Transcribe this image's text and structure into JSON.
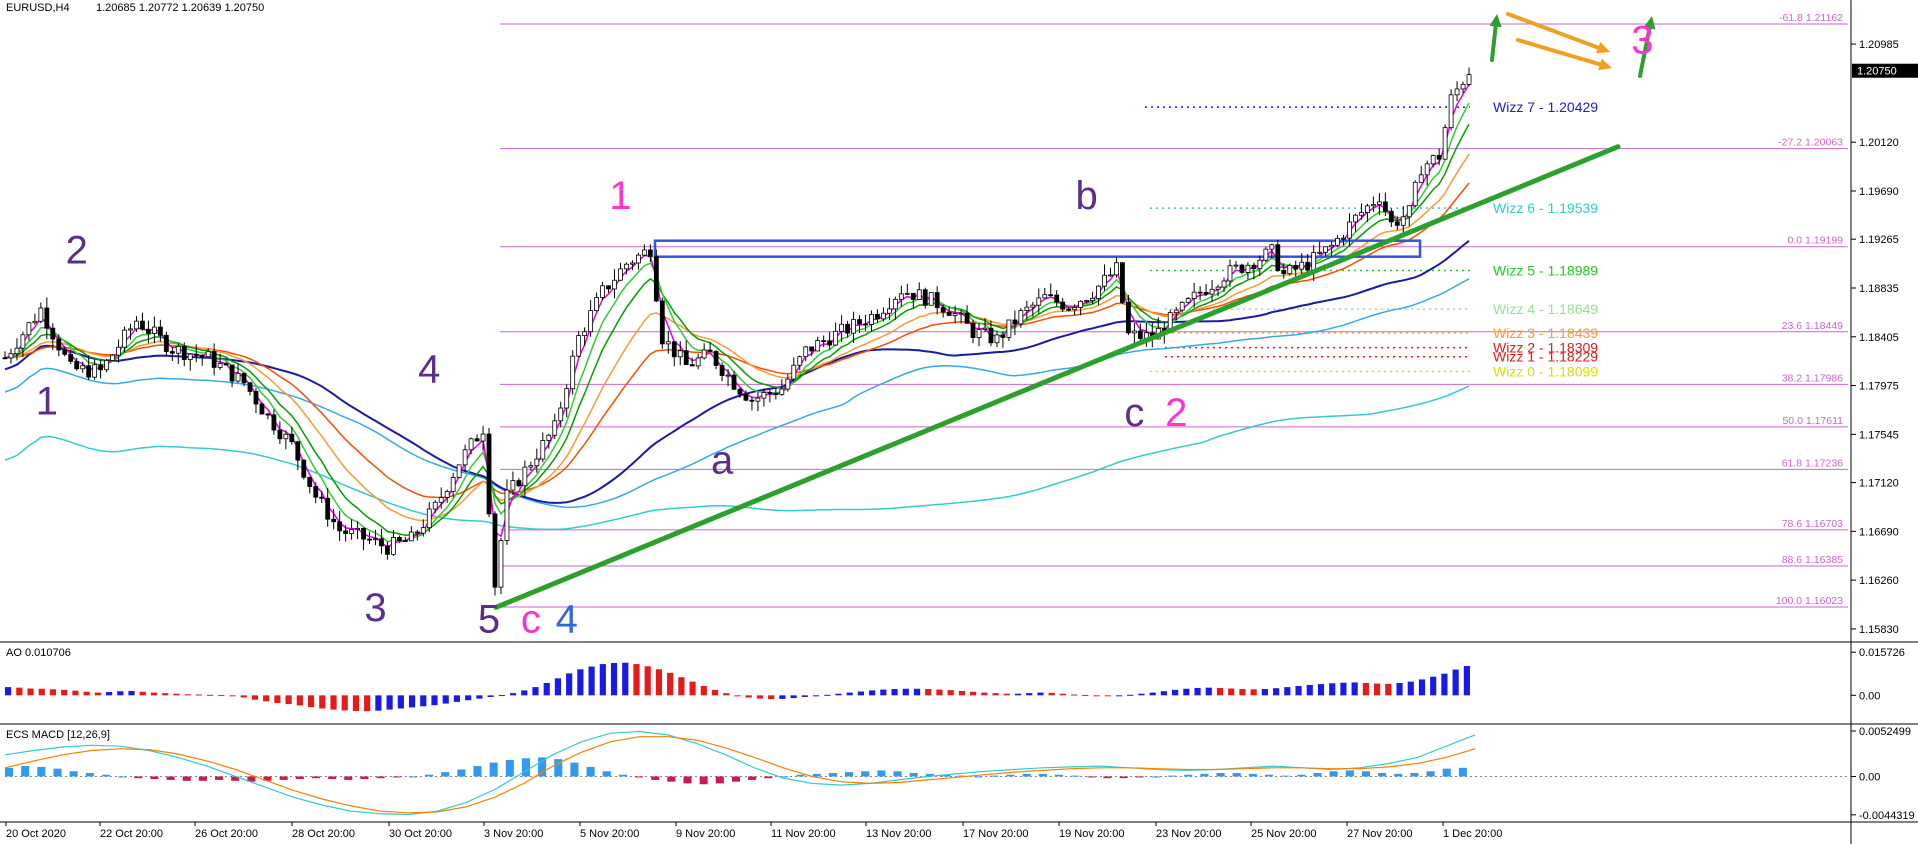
{
  "header": {
    "symbol": "EURUSD,H4",
    "ohlc": "1.20685 1.20772 1.20639 1.20750"
  },
  "colors": {
    "background": "#ffffff",
    "bull_candle": "#ffffff",
    "bear_candle": "#000000",
    "fib": "#cc66cc",
    "trend_line": "#2ca02c",
    "support_box": "#3355dd",
    "wave_purple": "#5b2d8c",
    "wave_pink": "#ff33cc",
    "wave_blue": "#3366dd",
    "arrow_green": "#2e9e2e",
    "arrow_orange": "#f0a020",
    "ao_up": "#1a1ae6",
    "ao_down": "#e61a1a",
    "macd_hist_up": "#3399ee",
    "macd_hist_down": "#cc1a4d",
    "macd_line": "#33cccc",
    "signal_line": "#ff8000",
    "ema_pink": "#e600e6",
    "ema_green": "#33cc33",
    "ema_green2": "#00a000",
    "ema_orange": "#ff9933",
    "ema_red": "#ff4d00",
    "ema_blue": "#1a1aa6",
    "ema_lightblue": "#33aaee",
    "ema_cyan": "#33cccc"
  },
  "chart_data": {
    "type": "candlestick",
    "symbol": "EURUSD",
    "timeframe": "H4",
    "price_axis": {
      "ylim": [
        1.1575,
        1.2125
      ],
      "ticks": [
        "1.20985",
        "1.20120",
        "1.19690",
        "1.19265",
        "1.18835",
        "1.18405",
        "1.17975",
        "1.17545",
        "1.17120",
        "1.16690",
        "1.16260",
        "1.15830"
      ],
      "current_price_label": "1.20750"
    },
    "time_axis": {
      "labels": [
        "20 Oct 2020",
        "22 Oct 20:00",
        "26 Oct 20:00",
        "28 Oct 20:00",
        "30 Oct 20:00",
        "3 Nov 20:00",
        "5 Nov 20:00",
        "9 Nov 20:00",
        "11 Nov 20:00",
        "13 Nov 20:00",
        "17 Nov 20:00",
        "19 Nov 20:00",
        "23 Nov 20:00",
        "25 Nov 20:00",
        "27 Nov 20:00",
        "1 Dec 20:00"
      ]
    },
    "price_path": [
      [
        0,
        1.1822
      ],
      [
        6,
        1.1865
      ],
      [
        11,
        1.1812
      ],
      [
        16,
        1.181
      ],
      [
        22,
        1.1855
      ],
      [
        28,
        1.183
      ],
      [
        34,
        1.1822
      ],
      [
        40,
        1.18
      ],
      [
        44,
        1.177
      ],
      [
        48,
        1.1745
      ],
      [
        52,
        1.17
      ],
      [
        56,
        1.167
      ],
      [
        60,
        1.1663
      ],
      [
        64,
        1.1655
      ],
      [
        68,
        1.1662
      ],
      [
        72,
        1.169
      ],
      [
        76,
        1.173
      ],
      [
        80,
        1.176
      ],
      [
        82,
        1.1622
      ],
      [
        84,
        1.17
      ],
      [
        88,
        1.173
      ],
      [
        92,
        1.176
      ],
      [
        96,
        1.184
      ],
      [
        100,
        1.188
      ],
      [
        104,
        1.1905
      ],
      [
        108,
        1.1918
      ],
      [
        110,
        1.184
      ],
      [
        114,
        1.1815
      ],
      [
        118,
        1.1825
      ],
      [
        122,
        1.18
      ],
      [
        125,
        1.1785
      ],
      [
        130,
        1.1795
      ],
      [
        134,
        1.1828
      ],
      [
        138,
        1.184
      ],
      [
        142,
        1.185
      ],
      [
        146,
        1.1862
      ],
      [
        150,
        1.1882
      ],
      [
        154,
        1.1875
      ],
      [
        158,
        1.1865
      ],
      [
        162,
        1.1845
      ],
      [
        166,
        1.1838
      ],
      [
        170,
        1.186
      ],
      [
        174,
        1.1875
      ],
      [
        178,
        1.1868
      ],
      [
        182,
        1.188
      ],
      [
        186,
        1.19
      ],
      [
        188,
        1.1842
      ],
      [
        192,
        1.184
      ],
      [
        196,
        1.186
      ],
      [
        200,
        1.188
      ],
      [
        204,
        1.1895
      ],
      [
        208,
        1.1905
      ],
      [
        212,
        1.1915
      ],
      [
        214,
        1.1895
      ],
      [
        218,
        1.1905
      ],
      [
        222,
        1.192
      ],
      [
        226,
        1.1945
      ],
      [
        230,
        1.1965
      ],
      [
        232,
        1.194
      ],
      [
        235,
        1.195
      ],
      [
        237,
        1.199
      ],
      [
        240,
        1.2
      ],
      [
        242,
        1.205
      ],
      [
        245,
        1.2075
      ]
    ],
    "fibonacci": [
      {
        "label": "-61.8 1.21162",
        "price": 1.21162
      },
      {
        "label": "-27.2 1.20063",
        "price": 1.20063
      },
      {
        "label": "0.0 1.19199",
        "price": 1.19199
      },
      {
        "label": "23.6 1.18449",
        "price": 1.18449
      },
      {
        "label": "38.2 1.17986",
        "price": 1.17986
      },
      {
        "label": "50.0 1.17611",
        "price": 1.17611
      },
      {
        "label": "61.8 1.17236",
        "price": 1.17236
      },
      {
        "label": "78.6 1.16703",
        "price": 1.16703
      },
      {
        "label": "88.6 1.16385",
        "price": 1.16385
      },
      {
        "label": "100.0 1.16023",
        "price": 1.16023
      }
    ],
    "wizz_levels": [
      {
        "label": "Wizz 7 - 1.20429",
        "price": 1.20429,
        "color": "#1a1ae6"
      },
      {
        "label": "Wizz 6 - 1.19539",
        "price": 1.19539,
        "color": "#33cccc"
      },
      {
        "label": "Wizz 5 - 1.18989",
        "price": 1.18989,
        "color": "#22cc22"
      },
      {
        "label": "Wizz 4 - 1.18649",
        "price": 1.18649,
        "color": "#99dd99"
      },
      {
        "label": "Wizz 3 - 1.18439",
        "price": 1.18439,
        "color": "#ff9933"
      },
      {
        "label": "Wizz 2 - 1.18309",
        "price": 1.18309,
        "color": "#e61a1a"
      },
      {
        "label": "Wizz 1 - 1.18229",
        "price": 1.18229,
        "color": "#e61a1a"
      },
      {
        "label": "Wizz 0 - 1.18099",
        "price": 1.18099,
        "color": "#dddd00"
      }
    ],
    "wave_labels": [
      {
        "text": "1",
        "bar": 7,
        "price": 1.1772,
        "color": "#5b2d8c"
      },
      {
        "text": "2",
        "bar": 12,
        "price": 1.1905,
        "color": "#5b2d8c"
      },
      {
        "text": "3",
        "bar": 62,
        "price": 1.159,
        "color": "#5b2d8c"
      },
      {
        "text": "4",
        "bar": 71,
        "price": 1.18,
        "color": "#5b2d8c"
      },
      {
        "text": "5",
        "bar": 81,
        "price": 1.158,
        "color": "#5b2d8c"
      },
      {
        "text": "c",
        "bar": 88,
        "price": 1.158,
        "color": "#ff33cc"
      },
      {
        "text": "4",
        "bar": 94,
        "price": 1.158,
        "color": "#3366dd"
      },
      {
        "text": "1",
        "bar": 103,
        "price": 1.1953,
        "color": "#ff33cc"
      },
      {
        "text": "a",
        "bar": 120,
        "price": 1.172,
        "color": "#5b2d8c"
      },
      {
        "text": "b",
        "bar": 181,
        "price": 1.1953,
        "color": "#5b2d8c"
      },
      {
        "text": "c",
        "bar": 189,
        "price": 1.1762,
        "color": "#5b2d8c"
      },
      {
        "text": "2",
        "bar": 196,
        "price": 1.1762,
        "color": "#ff33cc"
      },
      {
        "text": "3",
        "bar": 274,
        "price": 1.209,
        "color": "#ff33cc"
      }
    ],
    "awesome_oscillator": {
      "label": "AO 0.010706",
      "ylim": [
        -0.009,
        0.018
      ],
      "ticks": [
        "0.015726",
        "0.00"
      ],
      "values": [
        0.003,
        0.0028,
        0.0025,
        0.0024,
        0.0022,
        0.002,
        0.0017,
        0.0013,
        0.001,
        0.0012,
        0.0015,
        0.0016,
        0.0013,
        0.001,
        0.0008,
        0.0006,
        0.0004,
        0.0003,
        0.0002,
        0.0001,
        -0.0002,
        -0.0008,
        -0.0016,
        -0.0022,
        -0.0028,
        -0.0032,
        -0.0037,
        -0.0043,
        -0.0048,
        -0.0052,
        -0.0055,
        -0.0057,
        -0.0058,
        -0.0056,
        -0.0052,
        -0.0048,
        -0.0044,
        -0.004,
        -0.0036,
        -0.003,
        -0.0024,
        -0.0018,
        -0.0012,
        -0.0006,
        0.0001,
        0.0008,
        0.0018,
        0.003,
        0.0045,
        0.0062,
        0.008,
        0.0095,
        0.0105,
        0.0114,
        0.0118,
        0.0119,
        0.0114,
        0.0106,
        0.0095,
        0.0082,
        0.0066,
        0.005,
        0.0034,
        0.002,
        0.0008,
        -0.0002,
        -0.0008,
        -0.0012,
        -0.0014,
        -0.0013,
        -0.001,
        -0.0006,
        -0.0002,
        0.0002,
        0.0006,
        0.001,
        0.0014,
        0.0018,
        0.0021,
        0.0023,
        0.0024,
        0.0024,
        0.0023,
        0.0021,
        0.0019,
        0.0016,
        0.0013,
        0.001,
        0.0008,
        0.0006,
        0.0006,
        0.0008,
        0.001,
        0.0009,
        0.0006,
        0.0003,
        0.0001,
        -0.0001,
        -0.0002,
        -0.0001,
        0.0002,
        0.0006,
        0.001,
        0.0015,
        0.002,
        0.0024,
        0.0027,
        0.0028,
        0.0027,
        0.0025,
        0.0023,
        0.0022,
        0.0023,
        0.0026,
        0.003,
        0.0034,
        0.0038,
        0.0041,
        0.0044,
        0.0046,
        0.0047,
        0.0045,
        0.0043,
        0.0042,
        0.0045,
        0.005,
        0.0058,
        0.0068,
        0.0079,
        0.0094,
        0.0107
      ]
    },
    "ecs_macd": {
      "label": "ECS MACD [12,26,9]",
      "ylim": [
        -0.0048,
        0.0056
      ],
      "ticks": [
        "0.0052499",
        "0.00",
        "-0.0044319"
      ],
      "hist": [
        0.001,
        0.0012,
        0.0011,
        0.0009,
        0.0006,
        0.0004,
        0.0002,
        0.0,
        -0.0002,
        -0.0003,
        -0.0004,
        -0.0005,
        -0.0005,
        -0.0004,
        -0.0005,
        -0.0006,
        -0.0005,
        -0.0004,
        -0.0003,
        -0.0002,
        -0.0003,
        -0.0004,
        -0.0003,
        -0.0002,
        -0.0001,
        0.0,
        0.0002,
        0.0005,
        0.0008,
        0.0012,
        0.0016,
        0.0019,
        0.0021,
        0.0022,
        0.002,
        0.0016,
        0.0011,
        0.0006,
        0.0002,
        -0.0001,
        -0.0004,
        -0.0006,
        -0.0008,
        -0.0009,
        -0.0008,
        -0.0006,
        -0.0004,
        -0.0002,
        0.0,
        0.0002,
        0.0003,
        0.0004,
        0.0005,
        0.0006,
        0.0007,
        0.0006,
        0.0004,
        0.0003,
        0.0002,
        0.0001,
        0.0,
        0.0001,
        0.0002,
        0.0003,
        0.0003,
        0.0002,
        0.0001,
        -0.0001,
        -0.0002,
        -0.0002,
        -0.0001,
        0.0,
        0.0001,
        0.0002,
        0.0003,
        0.0004,
        0.0004,
        0.0003,
        0.0002,
        0.0001,
        0.0002,
        0.0004,
        0.0006,
        0.0007,
        0.0006,
        0.0004,
        0.0003,
        0.0004,
        0.0006,
        0.0009,
        0.001
      ],
      "macd": [
        0.0025,
        0.003,
        0.0034,
        0.0036,
        0.0035,
        0.003,
        0.0022,
        0.0012,
        0.0,
        -0.0012,
        -0.0024,
        -0.0033,
        -0.004,
        -0.0043,
        -0.0044,
        -0.004,
        -0.003,
        -0.0015,
        0.0005,
        0.0025,
        0.004,
        0.005,
        0.0052,
        0.0048,
        0.0038,
        0.0025,
        0.001,
        -0.0002,
        -0.0008,
        -0.001,
        -0.0008,
        -0.0004,
        0.0,
        0.0003,
        0.0006,
        0.0008,
        0.001,
        0.0011,
        0.0012,
        0.001,
        0.0008,
        0.0007,
        0.0008,
        0.001,
        0.0012,
        0.001,
        0.0008,
        0.001,
        0.0015,
        0.0022,
        0.0035,
        0.0048
      ],
      "signal": [
        0.001,
        0.0018,
        0.0025,
        0.003,
        0.0032,
        0.0031,
        0.0026,
        0.0018,
        0.0008,
        -0.0004,
        -0.0016,
        -0.0026,
        -0.0034,
        -0.004,
        -0.0042,
        -0.0041,
        -0.0035,
        -0.0024,
        -0.0008,
        0.0012,
        0.0028,
        0.004,
        0.0046,
        0.0046,
        0.0042,
        0.0033,
        0.0022,
        0.001,
        0.0,
        -0.0006,
        -0.0008,
        -0.0007,
        -0.0004,
        -0.0001,
        0.0002,
        0.0005,
        0.0007,
        0.0009,
        0.001,
        0.001,
        0.0009,
        0.0008,
        0.0008,
        0.0009,
        0.001,
        0.001,
        0.0009,
        0.0009,
        0.0011,
        0.0015,
        0.0022,
        0.0032
      ]
    }
  }
}
